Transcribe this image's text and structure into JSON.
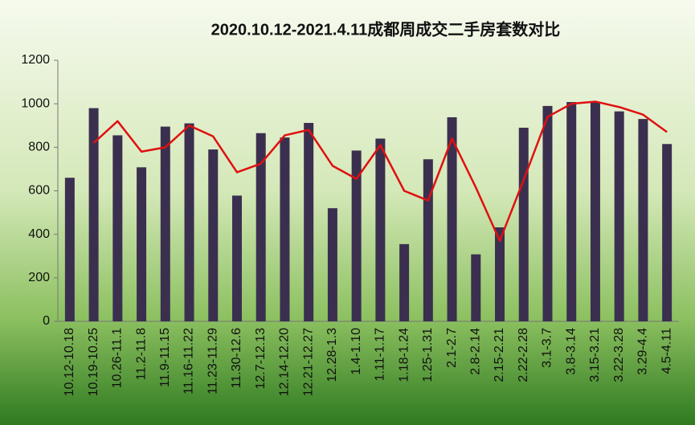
{
  "chart_data": {
    "type": "bar",
    "title": "2020.10.12-2021.4.11成都周成交二手房套数对比",
    "categories": [
      "10.12-10.18",
      "10.19-10.25",
      "10.26-11.1",
      "11.2-11.8",
      "11.9-11.15",
      "11.16-11.22",
      "11.23-11.29",
      "11.30-12.6",
      "12.7-12.13",
      "12.14-12.20",
      "12.21-12.27",
      "12.28-1.3",
      "1.4-1.10",
      "1.11-1.17",
      "1.18-1.24",
      "1.25-1.31",
      "2.1-2.7",
      "2.8-2.14",
      "2.15-2.21",
      "2.22-2.28",
      "3.1-3.7",
      "3.8-3.14",
      "3.15-3.21",
      "3.22-3.28",
      "3.29-4.4",
      "4.5-4.11"
    ],
    "series": [
      {
        "type": "bar",
        "color": "#3b2f4f",
        "values": [
          660,
          980,
          855,
          708,
          895,
          910,
          790,
          578,
          865,
          845,
          912,
          520,
          785,
          840,
          355,
          745,
          938,
          308,
          432,
          890,
          990,
          1008,
          1008,
          965,
          930,
          815
        ]
      },
      {
        "type": "line",
        "color": "#e01010",
        "values": [
          null,
          820,
          920,
          780,
          800,
          900,
          850,
          685,
          725,
          855,
          880,
          715,
          655,
          810,
          600,
          555,
          840,
          615,
          370,
          650,
          940,
          1000,
          1010,
          985,
          950,
          870
        ]
      }
    ],
    "ylim": [
      0,
      1200
    ],
    "yticks": [
      0,
      200,
      400,
      600,
      800,
      1000,
      1200
    ],
    "grid": false
  }
}
